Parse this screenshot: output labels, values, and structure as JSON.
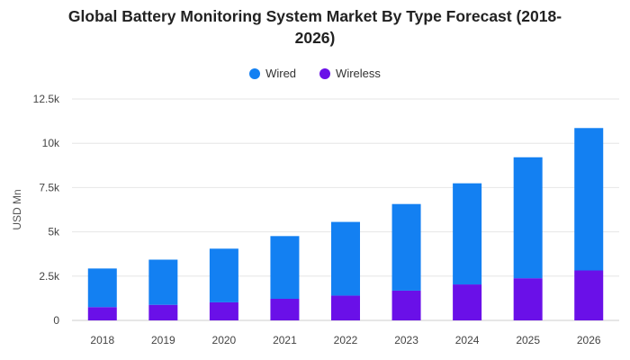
{
  "chart_data": {
    "type": "bar",
    "stacked": true,
    "title": "Global Battery Monitoring System Market By Type Forecast (2018-2026)",
    "title_lines": [
      "Global Battery Monitoring System Market By Type Forecast (2018-",
      "2026)"
    ],
    "xlabel": "",
    "ylabel": "USD Mn",
    "categories": [
      "2018",
      "2019",
      "2020",
      "2021",
      "2022",
      "2023",
      "2024",
      "2025",
      "2026"
    ],
    "series": [
      {
        "name": "Wireless",
        "color": "#6a10e8",
        "values": [
          750,
          880,
          1020,
          1220,
          1400,
          1680,
          2030,
          2380,
          2820
        ]
      },
      {
        "name": "Wired",
        "color": "#1380f2",
        "values": [
          2180,
          2550,
          3030,
          3540,
          4160,
          4890,
          5710,
          6830,
          8040
        ]
      }
    ],
    "legend_order": [
      "Wired",
      "Wireless"
    ],
    "legend_position": "top-center",
    "ylim": [
      0,
      12500
    ],
    "y_ticks": [
      {
        "value": 0,
        "label": "0"
      },
      {
        "value": 2500,
        "label": "2.5k"
      },
      {
        "value": 5000,
        "label": "5k"
      },
      {
        "value": 7500,
        "label": "7.5k"
      },
      {
        "value": 10000,
        "label": "10k"
      },
      {
        "value": 12500,
        "label": "12.5k"
      }
    ],
    "grid": true
  }
}
